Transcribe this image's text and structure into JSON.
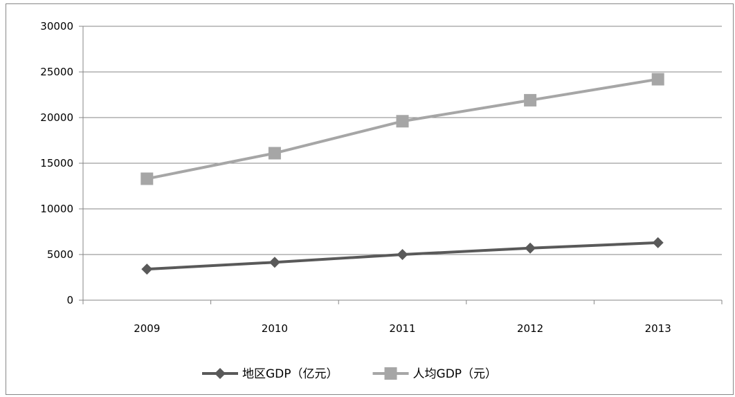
{
  "chart_data": {
    "type": "line",
    "title": "",
    "xlabel": "",
    "ylabel": "",
    "categories": [
      "2009",
      "2010",
      "2011",
      "2012",
      "2013"
    ],
    "ylim": [
      0,
      30000
    ],
    "yticks": [
      0,
      5000,
      10000,
      15000,
      20000,
      25000,
      30000
    ],
    "grid": true,
    "legend_position": "bottom",
    "series": [
      {
        "name": "地区GDP（亿元）",
        "values": [
          3400,
          4150,
          5000,
          5700,
          6300
        ],
        "color": "#595959",
        "marker": "diamond"
      },
      {
        "name": "人均GDP（元）",
        "values": [
          13300,
          16100,
          19600,
          21900,
          24200
        ],
        "color": "#a6a6a6",
        "marker": "square"
      }
    ]
  }
}
